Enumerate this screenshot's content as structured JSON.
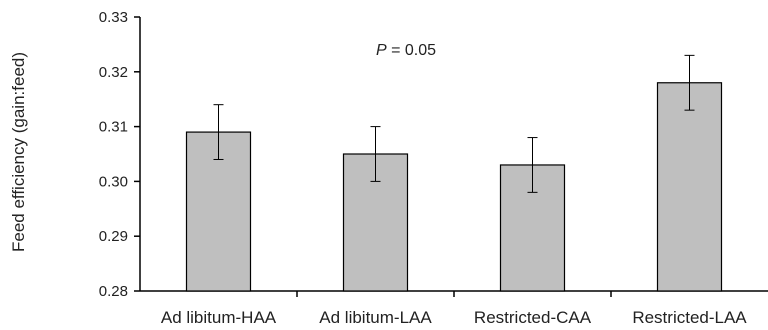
{
  "chart_data": {
    "type": "bar",
    "categories": [
      "Ad libitum-HAA",
      "Ad libitum-LAA",
      "Restricted-CAA",
      "Restricted-LAA"
    ],
    "values": [
      0.309,
      0.305,
      0.303,
      0.318
    ],
    "errors": [
      0.005,
      0.005,
      0.005,
      0.005
    ],
    "ylabel": "Feed efficiency (gain:feed)",
    "xlabel": "",
    "ylim": [
      0.28,
      0.33
    ],
    "yticks": [
      "0.28",
      "0.29",
      "0.30",
      "0.31",
      "0.32",
      "0.33"
    ],
    "annotation": {
      "italic": "P",
      "rest": " = 0.05"
    },
    "bar_color": "#bfbfbf",
    "grid": false
  }
}
